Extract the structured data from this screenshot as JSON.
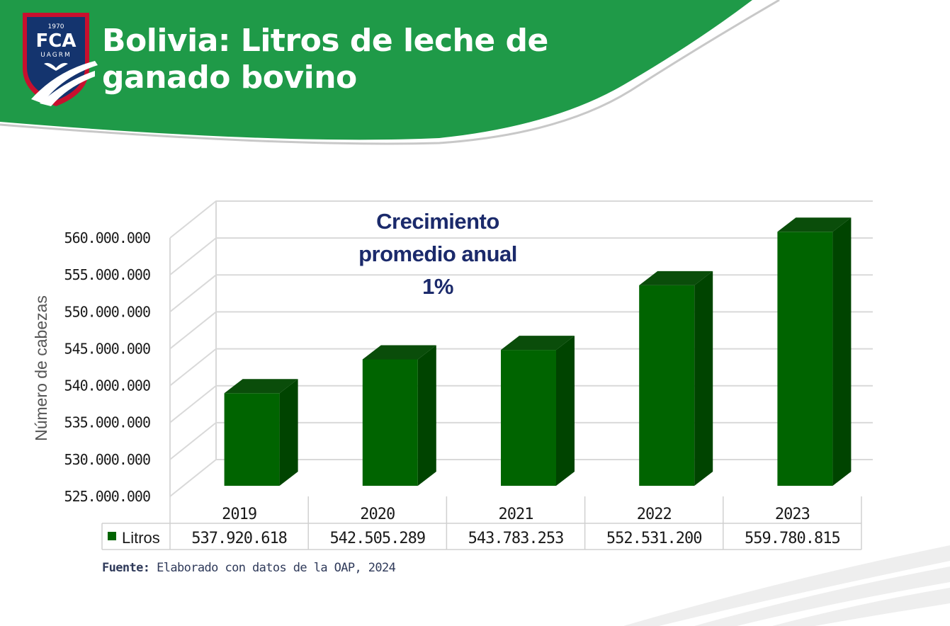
{
  "header": {
    "title_line1": "Bolivia: Litros de leche de",
    "title_line2": "ganado bovino",
    "logo_year": "1970",
    "logo_initials": "FCA",
    "logo_org": "UAGRM",
    "brand_color": "#1f9a48"
  },
  "chart_data": {
    "type": "bar",
    "categories": [
      "2019",
      "2020",
      "2021",
      "2022",
      "2023"
    ],
    "series": [
      {
        "name": "Litros",
        "values": [
          537920618,
          542505289,
          543783253,
          552531200,
          559780815
        ],
        "value_labels": [
          "537.920.618",
          "542.505.289",
          "543.783.253",
          "552.531.200",
          "559.780.815"
        ]
      }
    ],
    "ylabel": "Número de cabezas",
    "ylim": [
      525000000,
      560000000
    ],
    "yticks": [
      525000000,
      530000000,
      535000000,
      540000000,
      545000000,
      550000000,
      555000000,
      560000000
    ],
    "ytick_labels": [
      "525.000.000",
      "530.000.000",
      "535.000.000",
      "540.000.000",
      "545.000.000",
      "550.000.000",
      "555.000.000",
      "560.000.000"
    ],
    "annotation": [
      "Crecimiento",
      "promedio anual",
      "1%"
    ],
    "bar_color": "#006400",
    "grid": true,
    "data_table": true
  },
  "source": {
    "label": "Fuente:",
    "text": "Elaborado con datos de la OAP, 2024"
  }
}
